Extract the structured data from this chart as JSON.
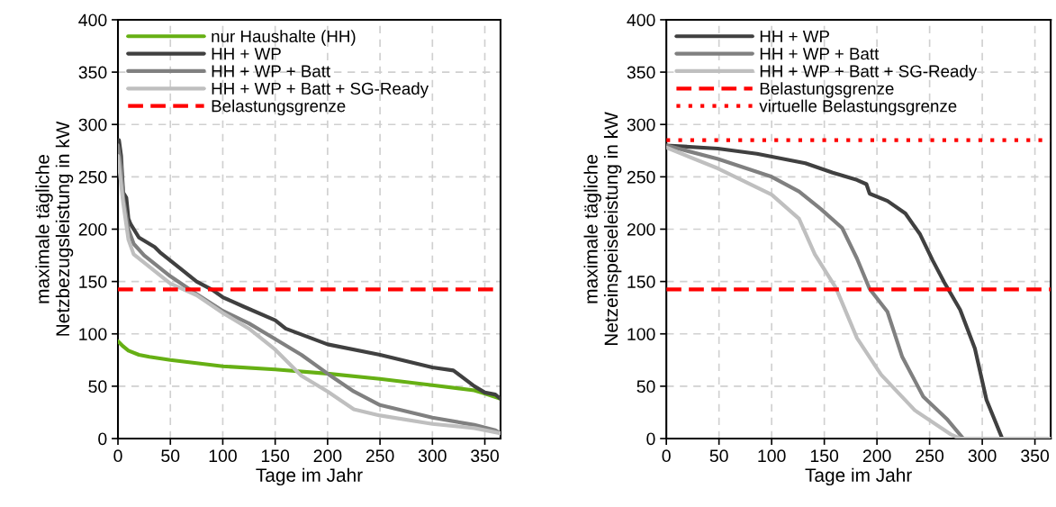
{
  "chart_data": [
    {
      "type": "line",
      "xlabel": "Tage im Jahr",
      "ylabel": "maximale tägliche\nNetzbezugsleistung in kW",
      "xlim": [
        0,
        365
      ],
      "ylim": [
        0,
        400
      ],
      "xticks": [
        0,
        50,
        100,
        150,
        200,
        250,
        300,
        350
      ],
      "yticks": [
        0,
        50,
        100,
        150,
        200,
        250,
        300,
        350,
        400
      ],
      "grid": true,
      "legend": "top left",
      "line_style": "solid",
      "marker": "none",
      "series": [
        {
          "name": "nur Haushalte (HH)",
          "color": "#66b014",
          "x": [
            0,
            5,
            10,
            20,
            30,
            50,
            75,
            100,
            150,
            200,
            250,
            300,
            340,
            350,
            365
          ],
          "values": [
            93,
            88,
            84,
            80,
            78,
            75,
            72,
            69,
            66,
            62,
            57,
            51,
            46,
            43,
            38
          ]
        },
        {
          "name": "HH + WP",
          "color": "#404040",
          "x": [
            0,
            1,
            3,
            5,
            8,
            10,
            12,
            20,
            35,
            40,
            50,
            60,
            75,
            90,
            100,
            120,
            150,
            160,
            200,
            250,
            300,
            320,
            340,
            350,
            360,
            365
          ],
          "values": [
            260,
            285,
            270,
            235,
            230,
            210,
            205,
            192,
            183,
            178,
            170,
            162,
            150,
            142,
            135,
            126,
            113,
            105,
            90,
            80,
            68,
            65,
            50,
            44,
            42,
            38
          ]
        },
        {
          "name": "HH + WP + Batt",
          "color": "#808080",
          "x": [
            0,
            3,
            5,
            10,
            15,
            25,
            50,
            75,
            100,
            125,
            150,
            175,
            200,
            225,
            250,
            300,
            340,
            360,
            365
          ],
          "values": [
            280,
            260,
            230,
            200,
            186,
            175,
            155,
            138,
            122,
            110,
            95,
            80,
            62,
            45,
            32,
            20,
            13,
            8,
            5
          ]
        },
        {
          "name": "HH + WP + Batt + SG-Ready",
          "color": "#bfbfbf",
          "x": [
            0,
            5,
            10,
            15,
            25,
            50,
            75,
            100,
            125,
            150,
            175,
            200,
            225,
            250,
            300,
            340,
            365
          ],
          "values": [
            270,
            225,
            190,
            176,
            168,
            148,
            137,
            120,
            105,
            85,
            60,
            45,
            28,
            22,
            14,
            10,
            5
          ]
        }
      ],
      "ref_lines": [
        {
          "axis": "y",
          "value": 142.5,
          "label": "Belastungsgrenze",
          "color": "#ff0000",
          "line_style": "dashed"
        }
      ]
    },
    {
      "type": "line",
      "xlabel": "Tage im Jahr",
      "ylabel": "maximale tägliche\nNetzeinspeiseleistung in kW",
      "xlim": [
        0,
        365
      ],
      "ylim": [
        0,
        400
      ],
      "xticks": [
        0,
        50,
        100,
        150,
        200,
        250,
        300,
        350
      ],
      "yticks": [
        0,
        50,
        100,
        150,
        200,
        250,
        300,
        350,
        400
      ],
      "grid": true,
      "legend": "top left",
      "line_style": "solid",
      "marker": "none",
      "series": [
        {
          "name": "HH + WP",
          "color": "#404040",
          "x": [
            0,
            49,
            86,
            132,
            158,
            181,
            190,
            193,
            210,
            227,
            241,
            253,
            264,
            279,
            293,
            304,
            319,
            365
          ],
          "values": [
            280,
            277,
            272,
            263,
            254,
            247,
            243,
            234,
            227,
            215,
            195,
            170,
            149,
            123,
            86,
            37,
            0,
            0
          ]
        },
        {
          "name": "HH + WP + Batt",
          "color": "#808080",
          "x": [
            0,
            49,
            100,
            126,
            147,
            167,
            181,
            193,
            210,
            224,
            244,
            267,
            282,
            365
          ],
          "values": [
            280,
            267,
            250,
            236,
            219,
            201,
            172,
            143,
            121,
            78,
            40,
            18,
            0,
            0
          ]
        },
        {
          "name": "HH + WP + Batt + SG-Ready",
          "color": "#bfbfbf",
          "x": [
            0,
            49,
            100,
            126,
            141,
            161,
            181,
            204,
            236,
            270,
            279,
            365
          ],
          "values": [
            278,
            258,
            233,
            210,
            176,
            144,
            96,
            61,
            27,
            4,
            0,
            0
          ]
        }
      ],
      "ref_lines": [
        {
          "axis": "y",
          "value": 142.5,
          "label": "Belastungsgrenze",
          "color": "#ff0000",
          "line_style": "dashed"
        },
        {
          "axis": "y",
          "value": 285,
          "label": "virtuelle Belastungsgrenze",
          "color": "#ff0000",
          "line_style": "dotted"
        }
      ]
    }
  ]
}
